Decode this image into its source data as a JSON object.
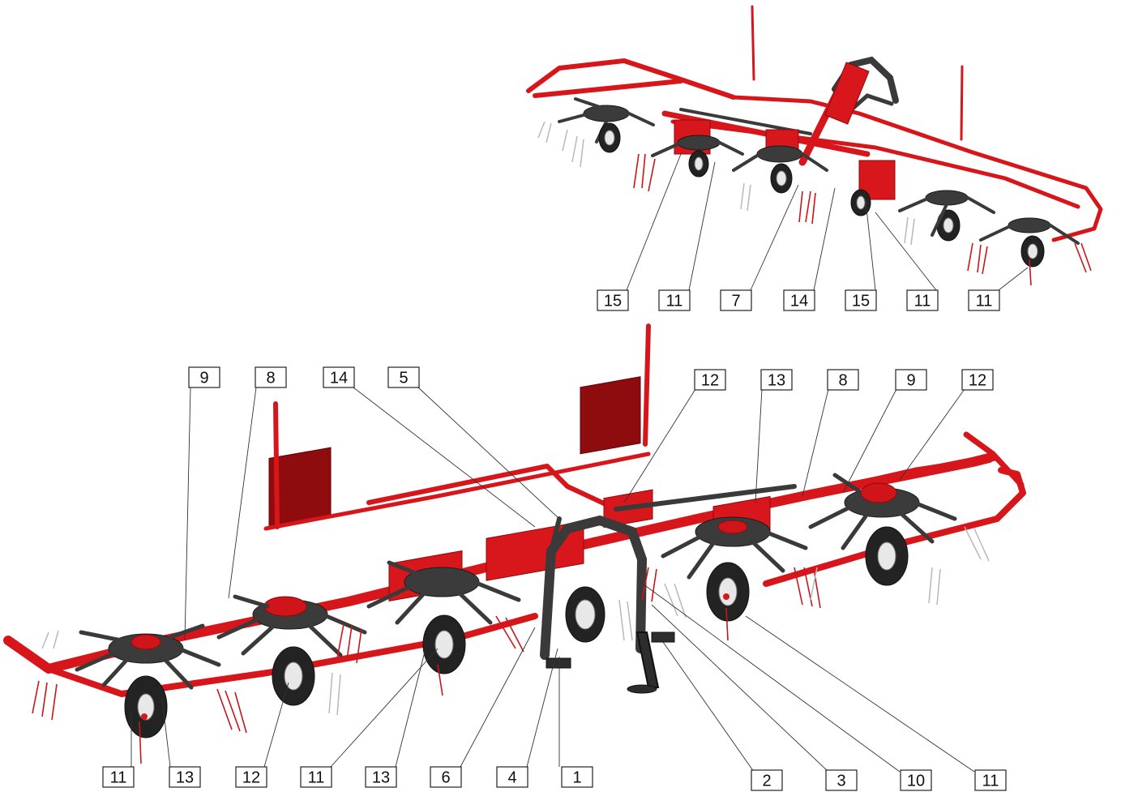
{
  "top_view_callouts": [
    "15",
    "11",
    "7",
    "14",
    "15",
    "11",
    "11"
  ],
  "bottom_top_callouts": [
    "9",
    "8",
    "14",
    "5",
    "12",
    "13",
    "8",
    "9",
    "12"
  ],
  "bottom_bottom_callouts": [
    "11",
    "13",
    "12",
    "11",
    "13",
    "6",
    "4",
    "1",
    "2",
    "3",
    "10",
    "11"
  ],
  "colors": {
    "frame": "#d7161b",
    "panel": "#8e0b0e",
    "arm": "#3a3a3a",
    "tyre": "#232323"
  }
}
